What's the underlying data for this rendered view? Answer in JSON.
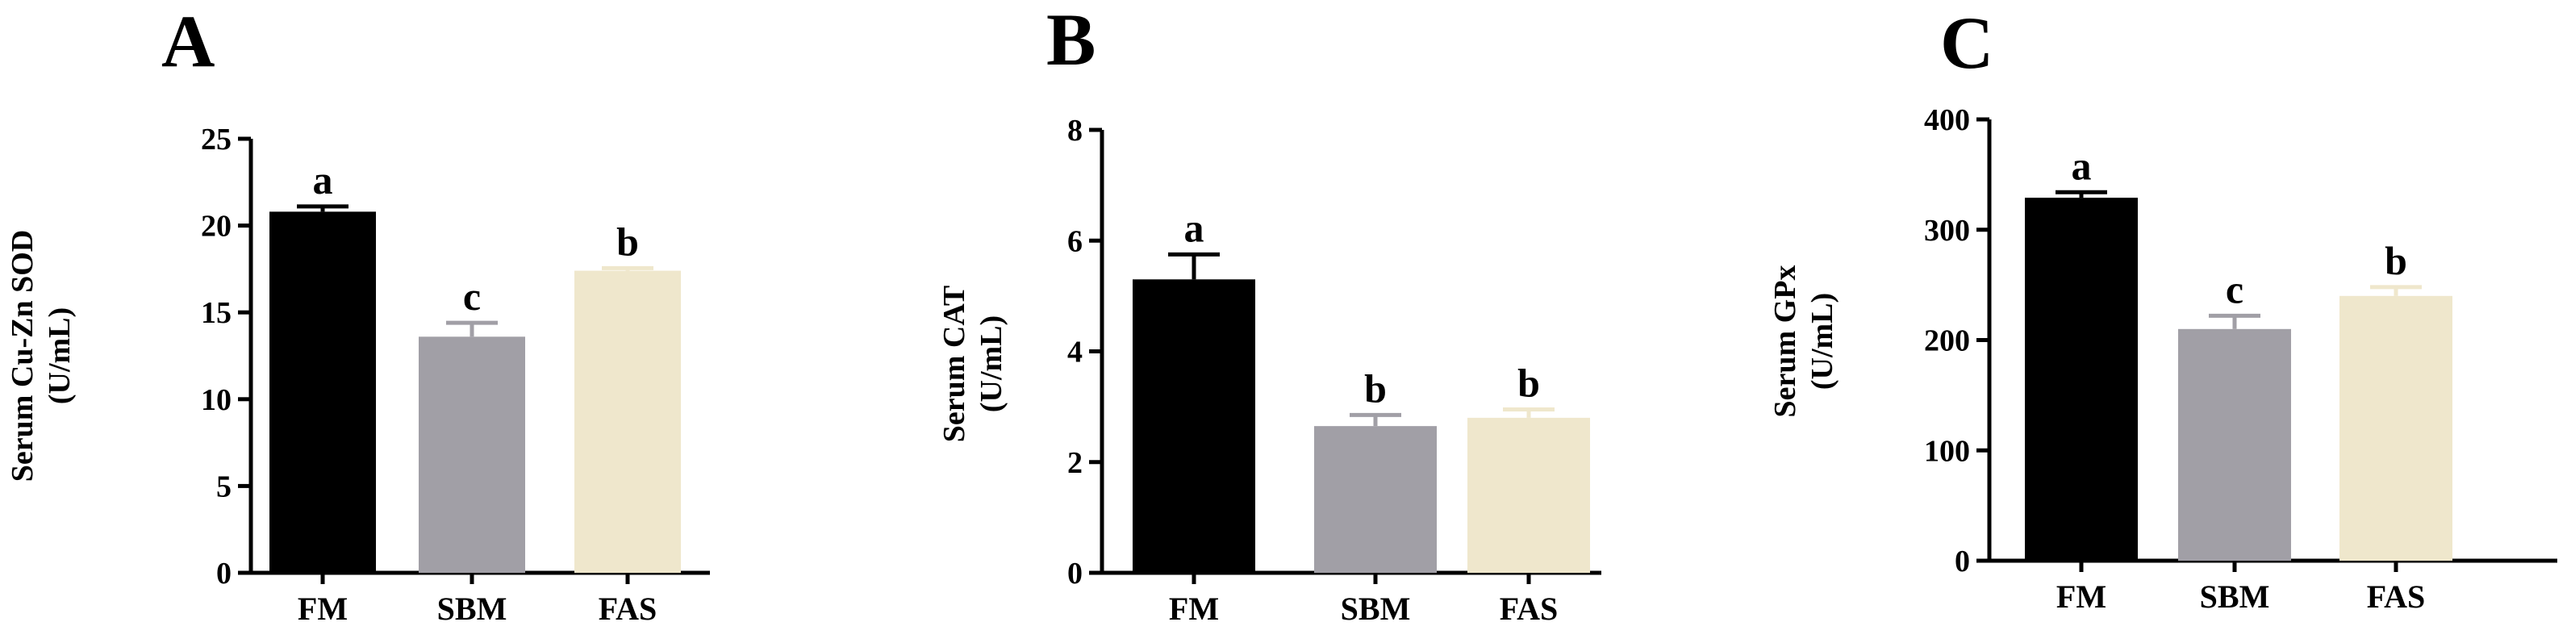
{
  "colors": {
    "FM": "#000000",
    "SBM": "#a19fa6",
    "FAS": "#efe7cc",
    "axis": "#000000",
    "error_FM": "#000000",
    "error_SBM": "#a19fa6",
    "error_FAS": "#efe7cc"
  },
  "chart_data": [
    {
      "type": "bar",
      "panel": "A",
      "categories": [
        "FM",
        "SBM",
        "FAS"
      ],
      "values": [
        20.8,
        13.6,
        17.4
      ],
      "errors": [
        0.3,
        0.8,
        0.15
      ],
      "significance": [
        "a",
        "c",
        "b"
      ],
      "ylabel": [
        "Serum Cu-Zn SOD",
        "(U/mL)"
      ],
      "ylim": [
        0,
        25
      ],
      "yticks": [
        0,
        5,
        10,
        15,
        20,
        25
      ],
      "grid": false
    },
    {
      "type": "bar",
      "panel": "B",
      "categories": [
        "FM",
        "SBM",
        "FAS"
      ],
      "values": [
        5.3,
        2.65,
        2.8
      ],
      "errors": [
        0.45,
        0.2,
        0.15
      ],
      "significance": [
        "a",
        "b",
        "b"
      ],
      "ylabel": [
        "Serum CAT",
        "(U/mL)"
      ],
      "ylim": [
        0,
        8
      ],
      "yticks": [
        0,
        2,
        4,
        6,
        8
      ],
      "grid": false
    },
    {
      "type": "bar",
      "panel": "C",
      "categories": [
        "FM",
        "SBM",
        "FAS"
      ],
      "values": [
        329,
        210,
        240
      ],
      "errors": [
        5,
        12,
        8
      ],
      "significance": [
        "a",
        "c",
        "b"
      ],
      "ylabel": [
        "Serum GPx",
        "(U/mL)"
      ],
      "ylim": [
        0,
        400
      ],
      "yticks": [
        0,
        100,
        200,
        300,
        400
      ],
      "grid": false
    }
  ]
}
